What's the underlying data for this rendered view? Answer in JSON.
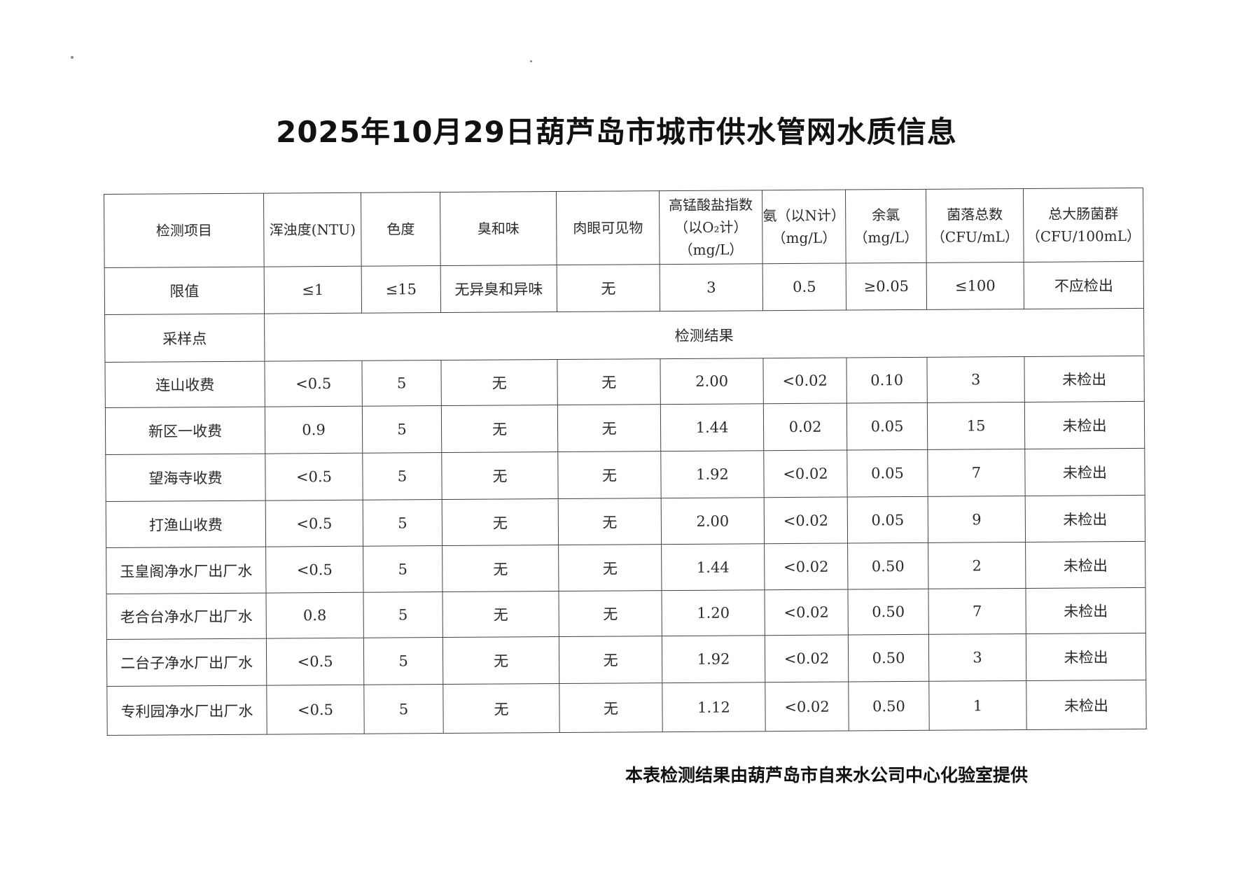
{
  "title": "2025年10月29日葫芦岛市城市供水管网水质信息",
  "table": {
    "header": {
      "item": "检测项目",
      "columns": [
        "浑浊度(NTU)",
        "色度",
        "臭和味",
        "肉眼可见物",
        "高锰酸盐指数\n（以O₂计）\n（mg/L）",
        "氨（以N计）\n（mg/L）",
        "余氯\n（mg/L）",
        "菌落总数\n（CFU/mL）",
        "总大肠菌群\n（CFU/100mL）"
      ]
    },
    "limits": {
      "label": "限值",
      "values": [
        "≤1",
        "≤15",
        "无异臭和异味",
        "无",
        "3",
        "0.5",
        "≥0.05",
        "≤100",
        "不应检出"
      ]
    },
    "section": {
      "label": "采样点",
      "result_label": "检测结果"
    },
    "rows": [
      {
        "site": "连山收费",
        "values": [
          "<0.5",
          "5",
          "无",
          "无",
          "2.00",
          "<0.02",
          "0.10",
          "3",
          "未检出"
        ]
      },
      {
        "site": "新区一收费",
        "values": [
          "0.9",
          "5",
          "无",
          "无",
          "1.44",
          "0.02",
          "0.05",
          "15",
          "未检出"
        ]
      },
      {
        "site": "望海寺收费",
        "values": [
          "<0.5",
          "5",
          "无",
          "无",
          "1.92",
          "<0.02",
          "0.05",
          "7",
          "未检出"
        ]
      },
      {
        "site": "打渔山收费",
        "values": [
          "<0.5",
          "5",
          "无",
          "无",
          "2.00",
          "<0.02",
          "0.05",
          "9",
          "未检出"
        ]
      },
      {
        "site": "玉皇阁净水厂出厂水",
        "values": [
          "<0.5",
          "5",
          "无",
          "无",
          "1.44",
          "<0.02",
          "0.50",
          "2",
          "未检出"
        ]
      },
      {
        "site": "老合台净水厂出厂水",
        "values": [
          "0.8",
          "5",
          "无",
          "无",
          "1.20",
          "<0.02",
          "0.50",
          "7",
          "未检出"
        ]
      },
      {
        "site": "二台子净水厂出厂水",
        "values": [
          "<0.5",
          "5",
          "无",
          "无",
          "1.92",
          "<0.02",
          "0.50",
          "3",
          "未检出"
        ]
      },
      {
        "site": "专利园净水厂出厂水",
        "values": [
          "<0.5",
          "5",
          "无",
          "无",
          "1.12",
          "<0.02",
          "0.50",
          "1",
          "未检出"
        ]
      }
    ]
  },
  "footer": "本表检测结果由葫芦岛市自来水公司中心化验室提供"
}
